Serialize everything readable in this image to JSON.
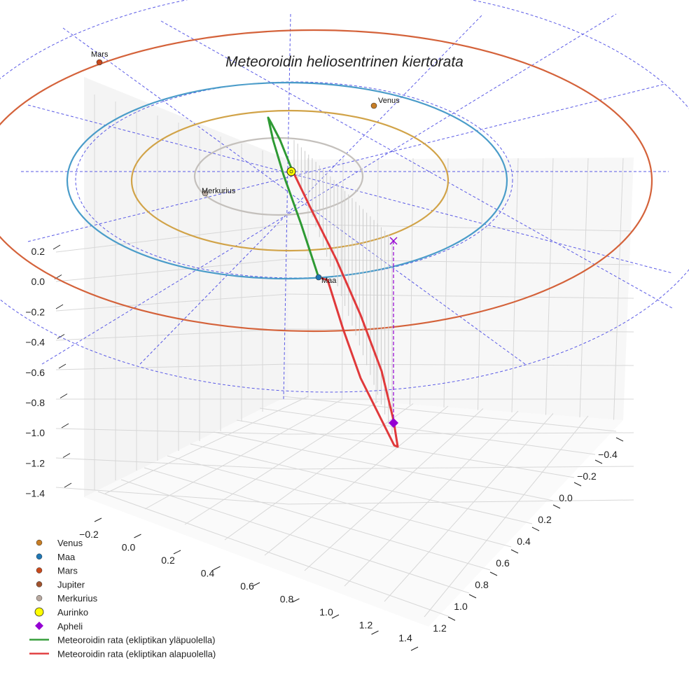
{
  "chart_data": {
    "type": "line",
    "title": "Meteoroidin heliosentrinen kiertorata",
    "grid": true,
    "axes": {
      "x_ticks": [
        "−0.2",
        "0.0",
        "0.2",
        "0.4",
        "0.6",
        "0.8",
        "1.0",
        "1.2",
        "1.4"
      ],
      "y_ticks": [
        "−0.4",
        "−0.2",
        "0.0",
        "0.2",
        "0.4",
        "0.6",
        "0.8",
        "1.0",
        "1.2"
      ],
      "z_ticks": [
        "0.2",
        "0.0",
        "−0.2",
        "−0.4",
        "−0.6",
        "−0.8",
        "−1.0",
        "−1.2",
        "−1.4"
      ],
      "x_range": [
        -0.3,
        1.45
      ],
      "y_range": [
        -0.5,
        1.3
      ],
      "z_range": [
        -1.5,
        0.3
      ]
    },
    "planets": [
      {
        "name": "Merkurius",
        "orbit_color": "#c4c0bc",
        "marker_color": "#b8a9a0"
      },
      {
        "name": "Venus",
        "orbit_color": "#d1a348",
        "marker_color": "#c77d25"
      },
      {
        "name": "Maa",
        "orbit_color": "#4a9cc9",
        "marker_color": "#1f77b4"
      },
      {
        "name": "Mars",
        "orbit_color": "#d4623a",
        "marker_color": "#c8491c"
      }
    ],
    "series": [
      {
        "name": "Meteoroidin rata (ekliptikan yläpuolella)",
        "color": "#2e9a34"
      },
      {
        "name": "Meteoroidin rata (ekliptikan alapuolella)",
        "color": "#e0393b"
      }
    ],
    "legend": {
      "position": "bottom-left",
      "entries": [
        {
          "label": "Venus",
          "kind": "dot",
          "color": "#c77d25"
        },
        {
          "label": "Maa",
          "kind": "dot",
          "color": "#1f77b4"
        },
        {
          "label": "Mars",
          "kind": "dot",
          "color": "#c8491c"
        },
        {
          "label": "Jupiter",
          "kind": "dot",
          "color": "#a0522d"
        },
        {
          "label": "Merkurius",
          "kind": "dot",
          "color": "#b8a9a0"
        },
        {
          "label": "Aurinko",
          "kind": "sun",
          "color": "#ffff00"
        },
        {
          "label": "Apheli",
          "kind": "diamond",
          "color": "#9400d3"
        },
        {
          "label": "Meteoroidin rata (ekliptikan yläpuolella)",
          "kind": "line",
          "color": "#2e9a34"
        },
        {
          "label": "Meteoroidin rata (ekliptikan alapuolella)",
          "kind": "line",
          "color": "#e0393b"
        }
      ]
    },
    "annotations": [
      "Merkurius",
      "Venus",
      "Maa",
      "Mars"
    ]
  }
}
